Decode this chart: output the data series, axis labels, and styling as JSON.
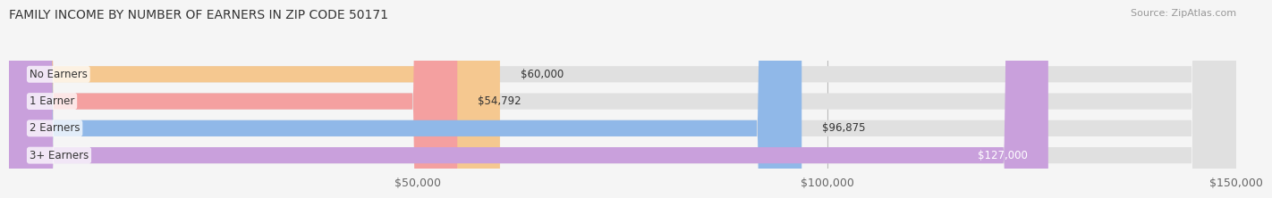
{
  "title": "FAMILY INCOME BY NUMBER OF EARNERS IN ZIP CODE 50171",
  "source": "Source: ZipAtlas.com",
  "categories": [
    "No Earners",
    "1 Earner",
    "2 Earners",
    "3+ Earners"
  ],
  "values": [
    60000,
    54792,
    96875,
    127000
  ],
  "bar_colors": [
    "#f5c890",
    "#f4a0a0",
    "#90b8e8",
    "#c9a0dc"
  ],
  "value_labels": [
    "$60,000",
    "$54,792",
    "$96,875",
    "$127,000"
  ],
  "value_label_inside": [
    false,
    false,
    false,
    true
  ],
  "xlim_min": 0,
  "xlim_max": 150000,
  "xticks": [
    50000,
    100000,
    150000
  ],
  "xticklabels": [
    "$50,000",
    "$100,000",
    "$150,000"
  ],
  "bg_color": "#f5f5f5",
  "bar_bg_color": "#e0e0e0",
  "title_fontsize": 10,
  "source_fontsize": 8,
  "tick_fontsize": 9,
  "cat_label_fontsize": 8.5,
  "value_label_fontsize": 8.5
}
